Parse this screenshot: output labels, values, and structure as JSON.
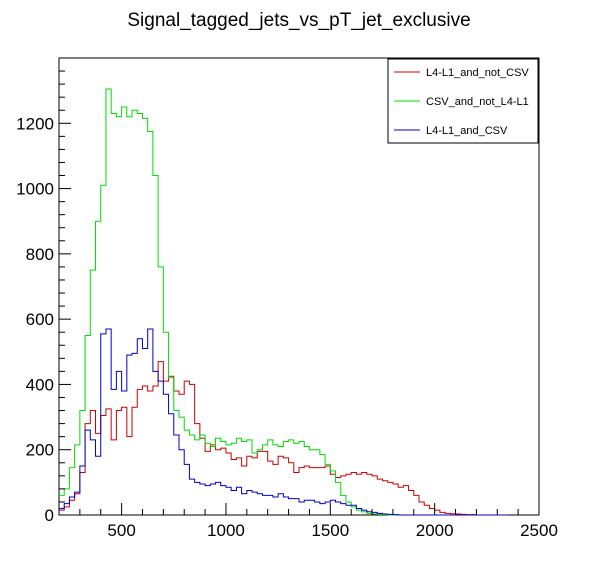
{
  "chart_data": {
    "type": "line",
    "title": "Signal_tagged_jets_vs_pT_jet_exclusive",
    "xlabel": "",
    "ylabel": "",
    "xlim": [
      200,
      2500
    ],
    "ylim": [
      0,
      1400
    ],
    "bin_width": 25,
    "x_ticks": [
      500,
      1000,
      1500,
      2000,
      2500
    ],
    "y_ticks": [
      0,
      200,
      400,
      600,
      800,
      1000,
      1200
    ],
    "legend_position": "top-right",
    "grid": false,
    "series": [
      {
        "name": "L4-L1_and_not_CSV",
        "color": "#cc0000",
        "x": [
          212.5,
          237.5,
          262.5,
          287.5,
          312.5,
          337.5,
          362.5,
          387.5,
          412.5,
          437.5,
          462.5,
          487.5,
          512.5,
          537.5,
          562.5,
          587.5,
          612.5,
          637.5,
          662.5,
          687.5,
          712.5,
          737.5,
          762.5,
          787.5,
          812.5,
          837.5,
          862.5,
          887.5,
          912.5,
          937.5,
          962.5,
          987.5,
          1012.5,
          1037.5,
          1062.5,
          1087.5,
          1112.5,
          1137.5,
          1162.5,
          1187.5,
          1212.5,
          1237.5,
          1262.5,
          1287.5,
          1312.5,
          1337.5,
          1362.5,
          1387.5,
          1412.5,
          1437.5,
          1462.5,
          1487.5,
          1512.5,
          1537.5,
          1562.5,
          1587.5,
          1612.5,
          1637.5,
          1662.5,
          1687.5,
          1712.5,
          1737.5,
          1762.5,
          1787.5,
          1812.5,
          1837.5,
          1862.5,
          1887.5,
          1912.5,
          1937.5,
          1962.5,
          1987.5,
          2012.5,
          2037.5,
          2062.5,
          2087.5,
          2112.5,
          2137.5,
          2162.5,
          2187.5,
          2212.5,
          2237.5,
          2262.5,
          2287.5,
          2312.5,
          2337.5
        ],
        "values": [
          15,
          25,
          45,
          65,
          130,
          280,
          320,
          250,
          305,
          325,
          230,
          320,
          330,
          240,
          330,
          385,
          395,
          380,
          395,
          470,
          410,
          425,
          380,
          370,
          410,
          400,
          280,
          235,
          195,
          215,
          200,
          205,
          190,
          170,
          175,
          150,
          180,
          175,
          195,
          195,
          165,
          155,
          180,
          175,
          160,
          130,
          145,
          150,
          145,
          145,
          145,
          150,
          125,
          115,
          120,
          125,
          130,
          125,
          130,
          125,
          120,
          110,
          105,
          100,
          95,
          85,
          90,
          75,
          60,
          40,
          30,
          20,
          15,
          8,
          5,
          4,
          3,
          2,
          1,
          1,
          0,
          0,
          0,
          0,
          0,
          0
        ]
      },
      {
        "name": "CSV_and_not_L4-L1",
        "color": "#00dd00",
        "x": [
          212.5,
          237.5,
          262.5,
          287.5,
          312.5,
          337.5,
          362.5,
          387.5,
          412.5,
          437.5,
          462.5,
          487.5,
          512.5,
          537.5,
          562.5,
          587.5,
          612.5,
          637.5,
          662.5,
          687.5,
          712.5,
          737.5,
          762.5,
          787.5,
          812.5,
          837.5,
          862.5,
          887.5,
          912.5,
          937.5,
          962.5,
          987.5,
          1012.5,
          1037.5,
          1062.5,
          1087.5,
          1112.5,
          1137.5,
          1162.5,
          1187.5,
          1212.5,
          1237.5,
          1262.5,
          1287.5,
          1312.5,
          1337.5,
          1362.5,
          1387.5,
          1412.5,
          1437.5,
          1462.5,
          1487.5,
          1512.5,
          1537.5,
          1562.5,
          1587.5,
          1612.5,
          1637.5,
          1662.5,
          1687.5,
          1712.5,
          1737.5,
          1762.5,
          1787.5,
          1812.5,
          1837.5,
          1862.5,
          1887.5,
          1912.5,
          1937.5,
          1962.5,
          1987.5,
          2012.5,
          2037.5,
          2062.5,
          2087.5,
          2112.5,
          2137.5,
          2162.5,
          2187.5,
          2212.5,
          2237.5,
          2262.5,
          2287.5,
          2312.5,
          2337.5
        ],
        "values": [
          60,
          80,
          145,
          215,
          320,
          550,
          750,
          900,
          1010,
          1305,
          1230,
          1220,
          1250,
          1220,
          1240,
          1230,
          1215,
          1175,
          1040,
          760,
          560,
          420,
          320,
          300,
          260,
          245,
          230,
          245,
          220,
          210,
          235,
          225,
          215,
          220,
          235,
          225,
          230,
          190,
          200,
          215,
          230,
          215,
          210,
          225,
          230,
          220,
          225,
          210,
          200,
          200,
          185,
          155,
          135,
          100,
          60,
          40,
          25,
          15,
          10,
          5,
          3,
          2,
          1,
          0,
          0,
          0,
          0,
          0,
          0,
          0,
          0,
          0,
          0,
          0,
          0,
          0,
          0,
          0,
          0,
          0,
          0,
          0,
          0,
          0,
          0,
          0
        ]
      },
      {
        "name": "L4-L1_and_CSV",
        "color": "#0000cc",
        "x": [
          212.5,
          237.5,
          262.5,
          287.5,
          312.5,
          337.5,
          362.5,
          387.5,
          412.5,
          437.5,
          462.5,
          487.5,
          512.5,
          537.5,
          562.5,
          587.5,
          612.5,
          637.5,
          662.5,
          687.5,
          712.5,
          737.5,
          762.5,
          787.5,
          812.5,
          837.5,
          862.5,
          887.5,
          912.5,
          937.5,
          962.5,
          987.5,
          1012.5,
          1037.5,
          1062.5,
          1087.5,
          1112.5,
          1137.5,
          1162.5,
          1187.5,
          1212.5,
          1237.5,
          1262.5,
          1287.5,
          1312.5,
          1337.5,
          1362.5,
          1387.5,
          1412.5,
          1437.5,
          1462.5,
          1487.5,
          1512.5,
          1537.5,
          1562.5,
          1587.5,
          1612.5,
          1637.5,
          1662.5,
          1687.5,
          1712.5,
          1737.5,
          1762.5,
          1787.5,
          1812.5,
          1837.5,
          1862.5,
          1887.5,
          1912.5,
          1937.5,
          1962.5,
          1987.5,
          2012.5,
          2037.5,
          2062.5,
          2087.5,
          2112.5,
          2137.5,
          2162.5,
          2187.5,
          2212.5,
          2237.5,
          2262.5,
          2287.5,
          2312.5,
          2337.5
        ],
        "values": [
          20,
          35,
          55,
          70,
          150,
          260,
          230,
          180,
          555,
          570,
          385,
          440,
          380,
          490,
          495,
          540,
          510,
          570,
          440,
          410,
          370,
          310,
          245,
          200,
          155,
          110,
          100,
          95,
          90,
          95,
          100,
          90,
          85,
          75,
          85,
          65,
          75,
          70,
          65,
          60,
          60,
          55,
          65,
          55,
          50,
          50,
          40,
          45,
          45,
          40,
          35,
          40,
          45,
          40,
          35,
          30,
          30,
          20,
          15,
          10,
          8,
          5,
          3,
          2,
          1,
          0,
          0,
          0,
          0,
          0,
          0,
          0,
          0,
          0,
          0,
          0,
          0,
          0,
          0,
          0,
          0,
          0,
          0,
          0,
          0,
          0
        ]
      }
    ]
  }
}
